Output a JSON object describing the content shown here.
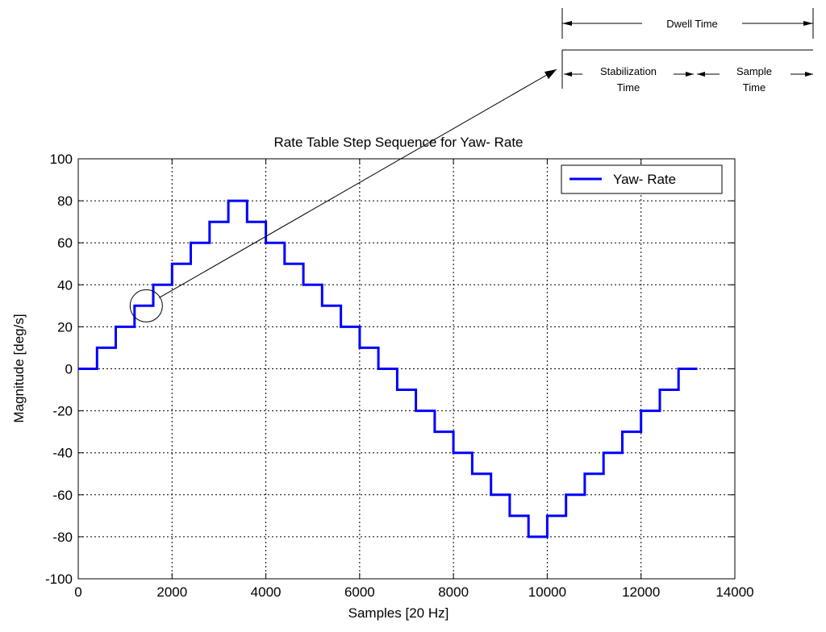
{
  "chart_data": {
    "type": "line",
    "title": "Rate Table Step Sequence for Yaw- Rate",
    "xlabel": "Samples [20 Hz]",
    "ylabel": "Magnitude [deg/s]",
    "xlim": [
      0,
      14000
    ],
    "ylim": [
      -100,
      100
    ],
    "xticks": [
      0,
      2000,
      4000,
      6000,
      8000,
      10000,
      12000,
      14000
    ],
    "yticks": [
      100,
      80,
      60,
      40,
      20,
      0,
      -20,
      -40,
      -60,
      -80,
      -100
    ],
    "grid": true,
    "grid_style": "dotted",
    "legend_position": "top-right",
    "series": [
      {
        "name": "Yaw- Rate",
        "color": "#0000ff",
        "step_start": 0,
        "step_length": 400,
        "end_x": 13600,
        "levels": [
          0,
          10,
          20,
          30,
          40,
          50,
          60,
          70,
          80,
          70,
          60,
          50,
          40,
          30,
          20,
          10,
          0,
          -10,
          -20,
          -30,
          -40,
          -50,
          -60,
          -70,
          -80,
          -70,
          -60,
          -50,
          -40,
          -30,
          -20,
          -10,
          0
        ]
      }
    ],
    "annotations": {
      "highlight_circle": {
        "x": 1450,
        "y": 30
      },
      "callout": {
        "dwell_label": "Dwell Time",
        "stabilization_label_1": "Stabilization",
        "stabilization_label_2": "Time",
        "sample_label_1": "Sample",
        "sample_label_2": "Time"
      }
    }
  }
}
